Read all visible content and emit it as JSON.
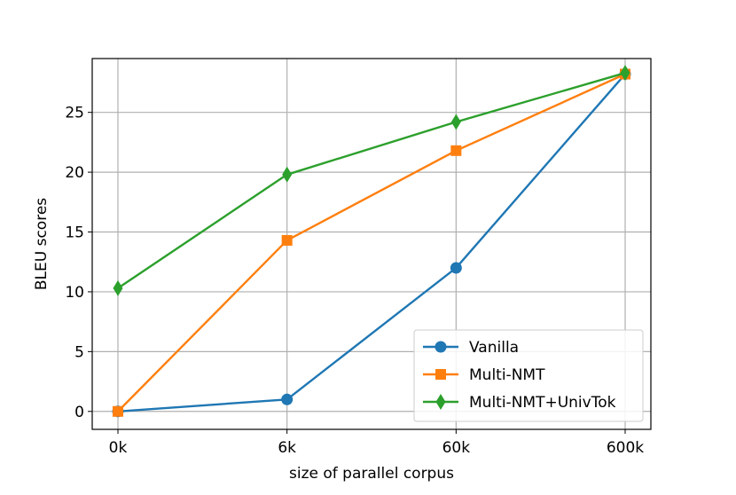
{
  "chart_data": {
    "type": "line",
    "title": "",
    "xlabel": "size of parallel corpus",
    "ylabel": "BLEU scores",
    "categories": [
      "0k",
      "6k",
      "60k",
      "600k"
    ],
    "ylim": [
      -1.5,
      29.5
    ],
    "yticks": [
      0,
      5,
      10,
      15,
      20,
      25
    ],
    "grid": true,
    "legend_position": "lower-right",
    "series": [
      {
        "name": "Vanilla",
        "values": [
          0,
          1,
          12,
          28.2
        ],
        "color": "#1f77b4",
        "marker": "circle"
      },
      {
        "name": "Multi-NMT",
        "values": [
          0,
          14.3,
          21.8,
          28.2
        ],
        "color": "#ff7f0e",
        "marker": "square"
      },
      {
        "name": "Multi-NMT+UnivTok",
        "values": [
          10.3,
          19.8,
          24.2,
          28.3
        ],
        "color": "#2ca02c",
        "marker": "diamond"
      }
    ]
  }
}
